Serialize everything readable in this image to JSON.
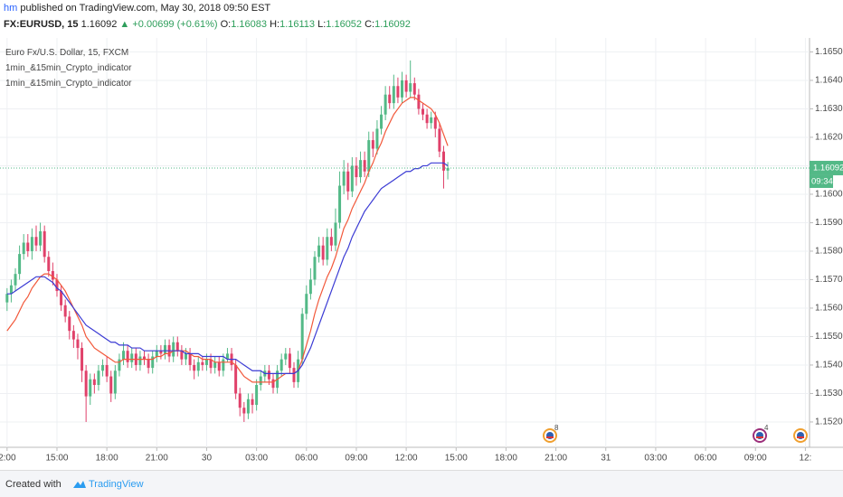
{
  "header": {
    "publisher": "hm",
    "published": "published on TradingView.com, May 30, 2018 09:50 EST",
    "symbol": "FX:EURUSD, 15",
    "last": "1.16092",
    "change": "▲ +0.00699 (+0.61%)",
    "o_label": "O:",
    "o": "1.16083",
    "h_label": "H:",
    "h": "1.16113",
    "l_label": "L:",
    "l": "1.16052",
    "c_label": "C:",
    "c": "1.16092"
  },
  "chart_data": {
    "type": "candlestick",
    "title": "Euro Fx/U.S. Dollar, 15, FXCM",
    "up_color": "#53b987",
    "down_color": "#e0416a",
    "candles": {
      "open": [
        1.1562,
        1.1565,
        1.1568,
        1.1572,
        1.1579,
        1.1583,
        1.158,
        1.1585,
        1.1582,
        1.1587,
        1.1578,
        1.1573,
        1.157,
        1.1566,
        1.1561,
        1.1557,
        1.1552,
        1.1549,
        1.1546,
        1.1538,
        1.1529,
        1.1535,
        1.1533,
        1.1538,
        1.154,
        1.1536,
        1.153,
        1.1538,
        1.1542,
        1.1545,
        1.1541,
        1.1544,
        1.154,
        1.1543,
        1.1542,
        1.1539,
        1.1543,
        1.1545,
        1.1544,
        1.1547,
        1.1543,
        1.1548,
        1.1545,
        1.1542,
        1.1544,
        1.154,
        1.1538,
        1.1541,
        1.154,
        1.1542,
        1.1539,
        1.1541,
        1.1538,
        1.1542,
        1.1544,
        1.154,
        1.153,
        1.1525,
        1.1523,
        1.1528,
        1.1526,
        1.1533,
        1.1536,
        1.1538,
        1.1535,
        1.1532,
        1.1538,
        1.1542,
        1.1544,
        1.1539,
        1.1534,
        1.1542,
        1.1558,
        1.1565,
        1.157,
        1.1578,
        1.1582,
        1.1577,
        1.1585,
        1.1582,
        1.159,
        1.1603,
        1.1608,
        1.1601,
        1.161,
        1.1606,
        1.1612,
        1.1608,
        1.1619,
        1.1616,
        1.1623,
        1.1628,
        1.1635,
        1.1632,
        1.1638,
        1.1634,
        1.164,
        1.1636,
        1.1639,
        1.1635,
        1.163,
        1.1628,
        1.1625,
        1.1627,
        1.1623,
        1.1615,
        1.16083
      ],
      "high": [
        1.1567,
        1.157,
        1.1574,
        1.1582,
        1.1586,
        1.1586,
        1.1588,
        1.1589,
        1.159,
        1.1589,
        1.158,
        1.1576,
        1.1572,
        1.1568,
        1.1563,
        1.1559,
        1.1554,
        1.1551,
        1.1548,
        1.154,
        1.1537,
        1.1537,
        1.154,
        1.1542,
        1.1543,
        1.1538,
        1.154,
        1.1544,
        1.1548,
        1.1547,
        1.1546,
        1.1546,
        1.1545,
        1.1545,
        1.1544,
        1.1545,
        1.1547,
        1.1547,
        1.1549,
        1.1549,
        1.155,
        1.155,
        1.1547,
        1.1546,
        1.1546,
        1.1542,
        1.1543,
        1.1543,
        1.1544,
        1.1544,
        1.1543,
        1.1543,
        1.1544,
        1.1546,
        1.1546,
        1.1542,
        1.1532,
        1.1527,
        1.153,
        1.153,
        1.1535,
        1.1538,
        1.154,
        1.154,
        1.1537,
        1.154,
        1.1544,
        1.1546,
        1.1546,
        1.1541,
        1.1545,
        1.156,
        1.1568,
        1.1574,
        1.158,
        1.1585,
        1.1585,
        1.1588,
        1.1588,
        1.1595,
        1.1608,
        1.1612,
        1.1611,
        1.1613,
        1.1613,
        1.1615,
        1.1615,
        1.1622,
        1.1622,
        1.1626,
        1.1631,
        1.1638,
        1.1638,
        1.1642,
        1.1641,
        1.1643,
        1.1642,
        1.1647,
        1.1641,
        1.1637,
        1.1632,
        1.163,
        1.1629,
        1.1629,
        1.1625,
        1.1617,
        1.16113
      ],
      "low": [
        1.1559,
        1.1562,
        1.1566,
        1.157,
        1.1577,
        1.1578,
        1.1577,
        1.158,
        1.158,
        1.1576,
        1.1571,
        1.1568,
        1.1564,
        1.1559,
        1.1555,
        1.1549,
        1.1546,
        1.1542,
        1.1534,
        1.152,
        1.1526,
        1.153,
        1.1531,
        1.1536,
        1.1534,
        1.1527,
        1.1528,
        1.1536,
        1.154,
        1.1539,
        1.1539,
        1.1538,
        1.1538,
        1.154,
        1.1537,
        1.1537,
        1.1541,
        1.1542,
        1.1542,
        1.1541,
        1.1541,
        1.1543,
        1.154,
        1.154,
        1.1538,
        1.1535,
        1.1536,
        1.1538,
        1.1538,
        1.1537,
        1.1537,
        1.1536,
        1.1536,
        1.1541,
        1.1538,
        1.1528,
        1.1522,
        1.152,
        1.1521,
        1.1523,
        1.1524,
        1.1531,
        1.1534,
        1.1533,
        1.153,
        1.153,
        1.1536,
        1.154,
        1.1537,
        1.1532,
        1.1532,
        1.154,
        1.1556,
        1.1563,
        1.1568,
        1.1576,
        1.1575,
        1.1575,
        1.158,
        1.158,
        1.1588,
        1.16,
        1.1598,
        1.1599,
        1.1603,
        1.1604,
        1.1606,
        1.1606,
        1.1613,
        1.1614,
        1.1621,
        1.1626,
        1.163,
        1.163,
        1.1632,
        1.1632,
        1.1634,
        1.1634,
        1.1633,
        1.1628,
        1.1626,
        1.1623,
        1.1623,
        1.162,
        1.1613,
        1.1602,
        1.16052
      ],
      "close": [
        1.1565,
        1.1568,
        1.1572,
        1.1579,
        1.1583,
        1.158,
        1.1585,
        1.1582,
        1.1587,
        1.1578,
        1.1573,
        1.157,
        1.1566,
        1.1561,
        1.1557,
        1.1552,
        1.1549,
        1.1546,
        1.1538,
        1.1529,
        1.1535,
        1.1533,
        1.1538,
        1.154,
        1.1536,
        1.153,
        1.1538,
        1.1542,
        1.1545,
        1.1541,
        1.1544,
        1.154,
        1.1543,
        1.1542,
        1.1539,
        1.1543,
        1.1545,
        1.1544,
        1.1547,
        1.1543,
        1.1548,
        1.1545,
        1.1542,
        1.1544,
        1.154,
        1.1538,
        1.1541,
        1.154,
        1.1542,
        1.1539,
        1.1541,
        1.1538,
        1.1542,
        1.1544,
        1.154,
        1.153,
        1.1525,
        1.1523,
        1.1528,
        1.1526,
        1.1533,
        1.1536,
        1.1538,
        1.1535,
        1.1532,
        1.1538,
        1.1542,
        1.1544,
        1.1539,
        1.1534,
        1.1542,
        1.1558,
        1.1565,
        1.157,
        1.1578,
        1.1582,
        1.1577,
        1.1585,
        1.1582,
        1.159,
        1.1603,
        1.1608,
        1.1601,
        1.161,
        1.1606,
        1.1612,
        1.1608,
        1.1619,
        1.1616,
        1.1623,
        1.1628,
        1.1635,
        1.1632,
        1.1638,
        1.1634,
        1.164,
        1.1636,
        1.1639,
        1.1635,
        1.163,
        1.1628,
        1.1625,
        1.1627,
        1.1623,
        1.1615,
        1.16083,
        1.16092
      ]
    },
    "series": [
      {
        "name": "1min_&15min_Crypto_indicator",
        "color": "#f2583a",
        "values": [
          1.1552,
          1.1554,
          1.1556,
          1.1559,
          1.1562,
          1.1564,
          1.1567,
          1.1569,
          1.1571,
          1.1572,
          1.1572,
          1.1571,
          1.157,
          1.1568,
          1.1566,
          1.1563,
          1.156,
          1.1557,
          1.1554,
          1.155,
          1.1548,
          1.1546,
          1.1545,
          1.1544,
          1.1543,
          1.1542,
          1.1541,
          1.1541,
          1.1542,
          1.1542,
          1.1542,
          1.1542,
          1.1542,
          1.1542,
          1.1542,
          1.1542,
          1.1543,
          1.1543,
          1.1544,
          1.1544,
          1.1545,
          1.1545,
          1.1545,
          1.1545,
          1.1544,
          1.1543,
          1.1543,
          1.1542,
          1.1542,
          1.1542,
          1.1541,
          1.1541,
          1.1541,
          1.1541,
          1.1541,
          1.154,
          1.1538,
          1.1536,
          1.1535,
          1.1534,
          1.1534,
          1.1534,
          1.1534,
          1.1534,
          1.1534,
          1.1535,
          1.1536,
          1.1537,
          1.1537,
          1.1537,
          1.1538,
          1.1542,
          1.1547,
          1.1552,
          1.1558,
          1.1563,
          1.1567,
          1.1571,
          1.1574,
          1.1578,
          1.1583,
          1.1588,
          1.1591,
          1.1595,
          1.1598,
          1.1601,
          1.1604,
          1.1608,
          1.1611,
          1.1615,
          1.1618,
          1.1622,
          1.1625,
          1.1628,
          1.163,
          1.1632,
          1.1633,
          1.1634,
          1.1634,
          1.1633,
          1.1632,
          1.1631,
          1.163,
          1.1628,
          1.1625,
          1.1621,
          1.1617
        ]
      },
      {
        "name": "1min_&15min_Crypto_indicator",
        "color": "#3b3bd4",
        "values": [
          1.1565,
          1.1565,
          1.1566,
          1.1567,
          1.1568,
          1.1569,
          1.157,
          1.1571,
          1.1571,
          1.1571,
          1.157,
          1.1569,
          1.1567,
          1.1566,
          1.1564,
          1.1562,
          1.156,
          1.1558,
          1.1556,
          1.1554,
          1.1553,
          1.1552,
          1.1551,
          1.155,
          1.1549,
          1.1548,
          1.1548,
          1.1547,
          1.1547,
          1.1547,
          1.1546,
          1.1546,
          1.1546,
          1.1545,
          1.1545,
          1.1545,
          1.1545,
          1.1545,
          1.1545,
          1.1545,
          1.1545,
          1.1545,
          1.1545,
          1.1544,
          1.1544,
          1.1544,
          1.1544,
          1.1543,
          1.1543,
          1.1543,
          1.1543,
          1.1543,
          1.1543,
          1.1542,
          1.1542,
          1.1542,
          1.1541,
          1.154,
          1.1539,
          1.1538,
          1.1538,
          1.1538,
          1.1537,
          1.1537,
          1.1537,
          1.1537,
          1.1537,
          1.1537,
          1.1537,
          1.1537,
          1.1538,
          1.154,
          1.1543,
          1.1546,
          1.155,
          1.1554,
          1.1558,
          1.1562,
          1.1566,
          1.157,
          1.1574,
          1.1578,
          1.1581,
          1.1585,
          1.1588,
          1.1591,
          1.1594,
          1.1596,
          1.1598,
          1.16,
          1.1602,
          1.1603,
          1.1604,
          1.1605,
          1.1606,
          1.1607,
          1.1608,
          1.1608,
          1.1609,
          1.1609,
          1.161,
          1.161,
          1.1611,
          1.1611,
          1.1611,
          1.1611,
          1.161
        ]
      }
    ],
    "xlim": [
      -1.7,
      193
    ],
    "xticks": [
      {
        "value": 0,
        "label": "2:00"
      },
      {
        "value": 12,
        "label": "15:00"
      },
      {
        "value": 24,
        "label": "18:00"
      },
      {
        "value": 36,
        "label": "21:00"
      },
      {
        "value": 48,
        "label": "30"
      },
      {
        "value": 60,
        "label": "03:00"
      },
      {
        "value": 72,
        "label": "06:00"
      },
      {
        "value": 84,
        "label": "09:00"
      },
      {
        "value": 96,
        "label": "12:00"
      },
      {
        "value": 108,
        "label": "15:00"
      },
      {
        "value": 120,
        "label": "18:00"
      },
      {
        "value": 132,
        "label": "21:00"
      },
      {
        "value": 144,
        "label": "31"
      },
      {
        "value": 156,
        "label": "03:00"
      },
      {
        "value": 168,
        "label": "06:00"
      },
      {
        "value": 180,
        "label": "09:00"
      },
      {
        "value": 192,
        "label": "12:"
      }
    ],
    "ylim": [
      1.15111,
      1.16549
    ],
    "yticks": [
      {
        "value": 1.152,
        "label": "1.15200"
      },
      {
        "value": 1.153,
        "label": "1.15300"
      },
      {
        "value": 1.154,
        "label": "1.15400"
      },
      {
        "value": 1.155,
        "label": "1.15500"
      },
      {
        "value": 1.156,
        "label": "1.15600"
      },
      {
        "value": 1.157,
        "label": "1.15700"
      },
      {
        "value": 1.158,
        "label": "1.15800"
      },
      {
        "value": 1.159,
        "label": "1.15900"
      },
      {
        "value": 1.16,
        "label": "1.16000"
      },
      {
        "value": 1.161,
        "label": "1.16100"
      },
      {
        "value": 1.162,
        "label": "1.16200"
      },
      {
        "value": 1.163,
        "label": "1.16300"
      },
      {
        "value": 1.164,
        "label": "1.16400"
      },
      {
        "value": 1.165,
        "label": "1.16500"
      }
    ],
    "grid": true,
    "countdown": "09:34",
    "events": [
      "8",
      "4"
    ]
  },
  "footer": {
    "created": "Created with",
    "brand": "TradingView"
  }
}
